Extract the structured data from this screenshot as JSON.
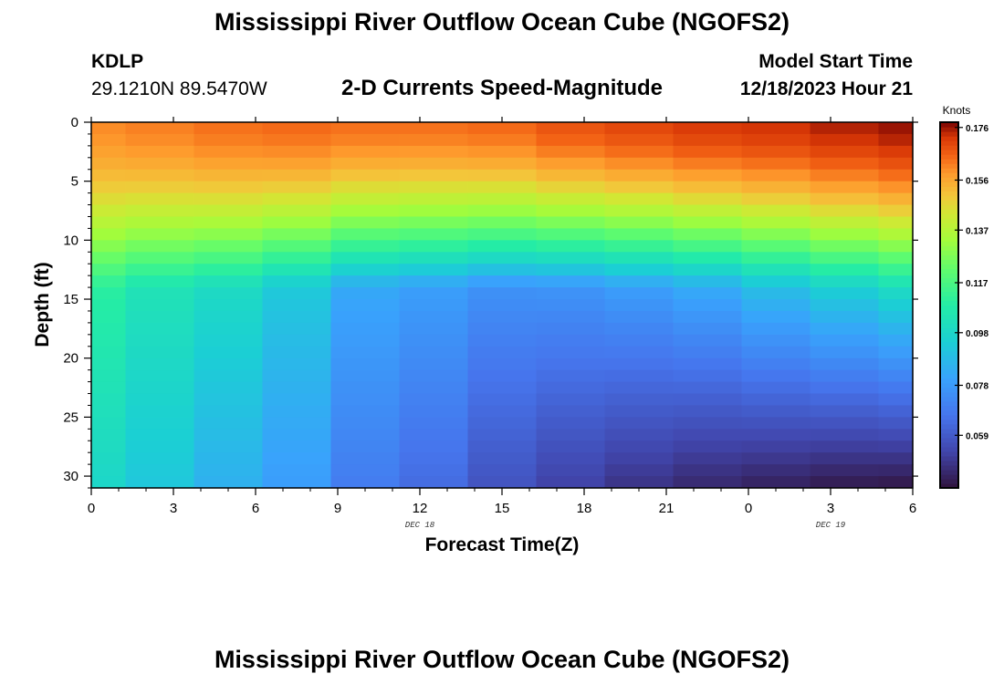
{
  "header": {
    "title": "Mississippi River Outflow Ocean Cube (NGOFS2)",
    "station_id": "KDLP",
    "station_location": "29.1210N  89.5470W",
    "subtitle": "2-D Currents Speed-Magnitude",
    "model_start_label": "Model Start Time",
    "model_start_time": "12/18/2023 Hour 21"
  },
  "footer": {
    "title": "Mississippi River Outflow Ocean Cube (NGOFS2)"
  },
  "chart_data": {
    "type": "heatmap",
    "title": "2-D Currents Speed-Magnitude",
    "xlabel": "Forecast Time(Z)",
    "ylabel": "Depth (ft)",
    "x_tick_labels": [
      "0",
      "3",
      "6",
      "9",
      "12",
      "15",
      "18",
      "21",
      "0",
      "3",
      "6"
    ],
    "x_tick_hours": [
      0,
      3,
      6,
      9,
      12,
      15,
      18,
      21,
      24,
      27,
      30
    ],
    "date_labels": [
      {
        "text": "DEC 18",
        "hour": 12
      },
      {
        "text": "DEC 19",
        "hour": 27
      }
    ],
    "xlim": [
      0,
      30
    ],
    "ylim": [
      0,
      31
    ],
    "y_ticks": [
      0,
      5,
      10,
      15,
      20,
      25,
      30
    ],
    "y_inverted": true,
    "colorbar": {
      "unit": "Knots",
      "ticks": [
        0.176,
        0.156,
        0.137,
        0.117,
        0.098,
        0.078,
        0.059
      ],
      "min": 0.039,
      "max": 0.178,
      "palette": "turbo"
    },
    "columns_hours": [
      0,
      1.25,
      3.75,
      6.25,
      8.75,
      11.25,
      13.75,
      16.25,
      18.75,
      21.25,
      23.75,
      26.25,
      28.75,
      30
    ],
    "depth_levels": [
      0,
      1.0,
      2.0,
      3.0,
      4.0,
      5.0,
      6.0,
      7.0,
      8.0,
      9.0,
      10.0,
      11.0,
      12.0,
      13.0,
      14.0,
      15.0,
      16.0,
      17.0,
      18.0,
      19.0,
      20.0,
      21.0,
      22.0,
      23.0,
      24.0,
      25.0,
      26.0,
      27.0,
      28.0,
      29.0,
      30.0,
      31.0
    ],
    "profiles": [
      {
        "hour": 0,
        "surface": 0.16,
        "mid": 0.112,
        "bottom": 0.1
      },
      {
        "hour": 2.5,
        "surface": 0.162,
        "mid": 0.104,
        "bottom": 0.092
      },
      {
        "hour": 5,
        "surface": 0.164,
        "mid": 0.1,
        "bottom": 0.085
      },
      {
        "hour": 7.5,
        "surface": 0.165,
        "mid": 0.093,
        "bottom": 0.079
      },
      {
        "hour": 10,
        "surface": 0.164,
        "mid": 0.083,
        "bottom": 0.069
      },
      {
        "hour": 12.5,
        "surface": 0.164,
        "mid": 0.08,
        "bottom": 0.064
      },
      {
        "hour": 15,
        "surface": 0.165,
        "mid": 0.076,
        "bottom": 0.057
      },
      {
        "hour": 17.5,
        "surface": 0.168,
        "mid": 0.077,
        "bottom": 0.052
      },
      {
        "hour": 20,
        "surface": 0.17,
        "mid": 0.08,
        "bottom": 0.048
      },
      {
        "hour": 22.5,
        "surface": 0.172,
        "mid": 0.084,
        "bottom": 0.045
      },
      {
        "hour": 25,
        "surface": 0.173,
        "mid": 0.09,
        "bottom": 0.043
      },
      {
        "hour": 27.5,
        "surface": 0.175,
        "mid": 0.096,
        "bottom": 0.041
      },
      {
        "hour": 30,
        "surface": 0.177,
        "mid": 0.103,
        "bottom": 0.04
      }
    ]
  }
}
